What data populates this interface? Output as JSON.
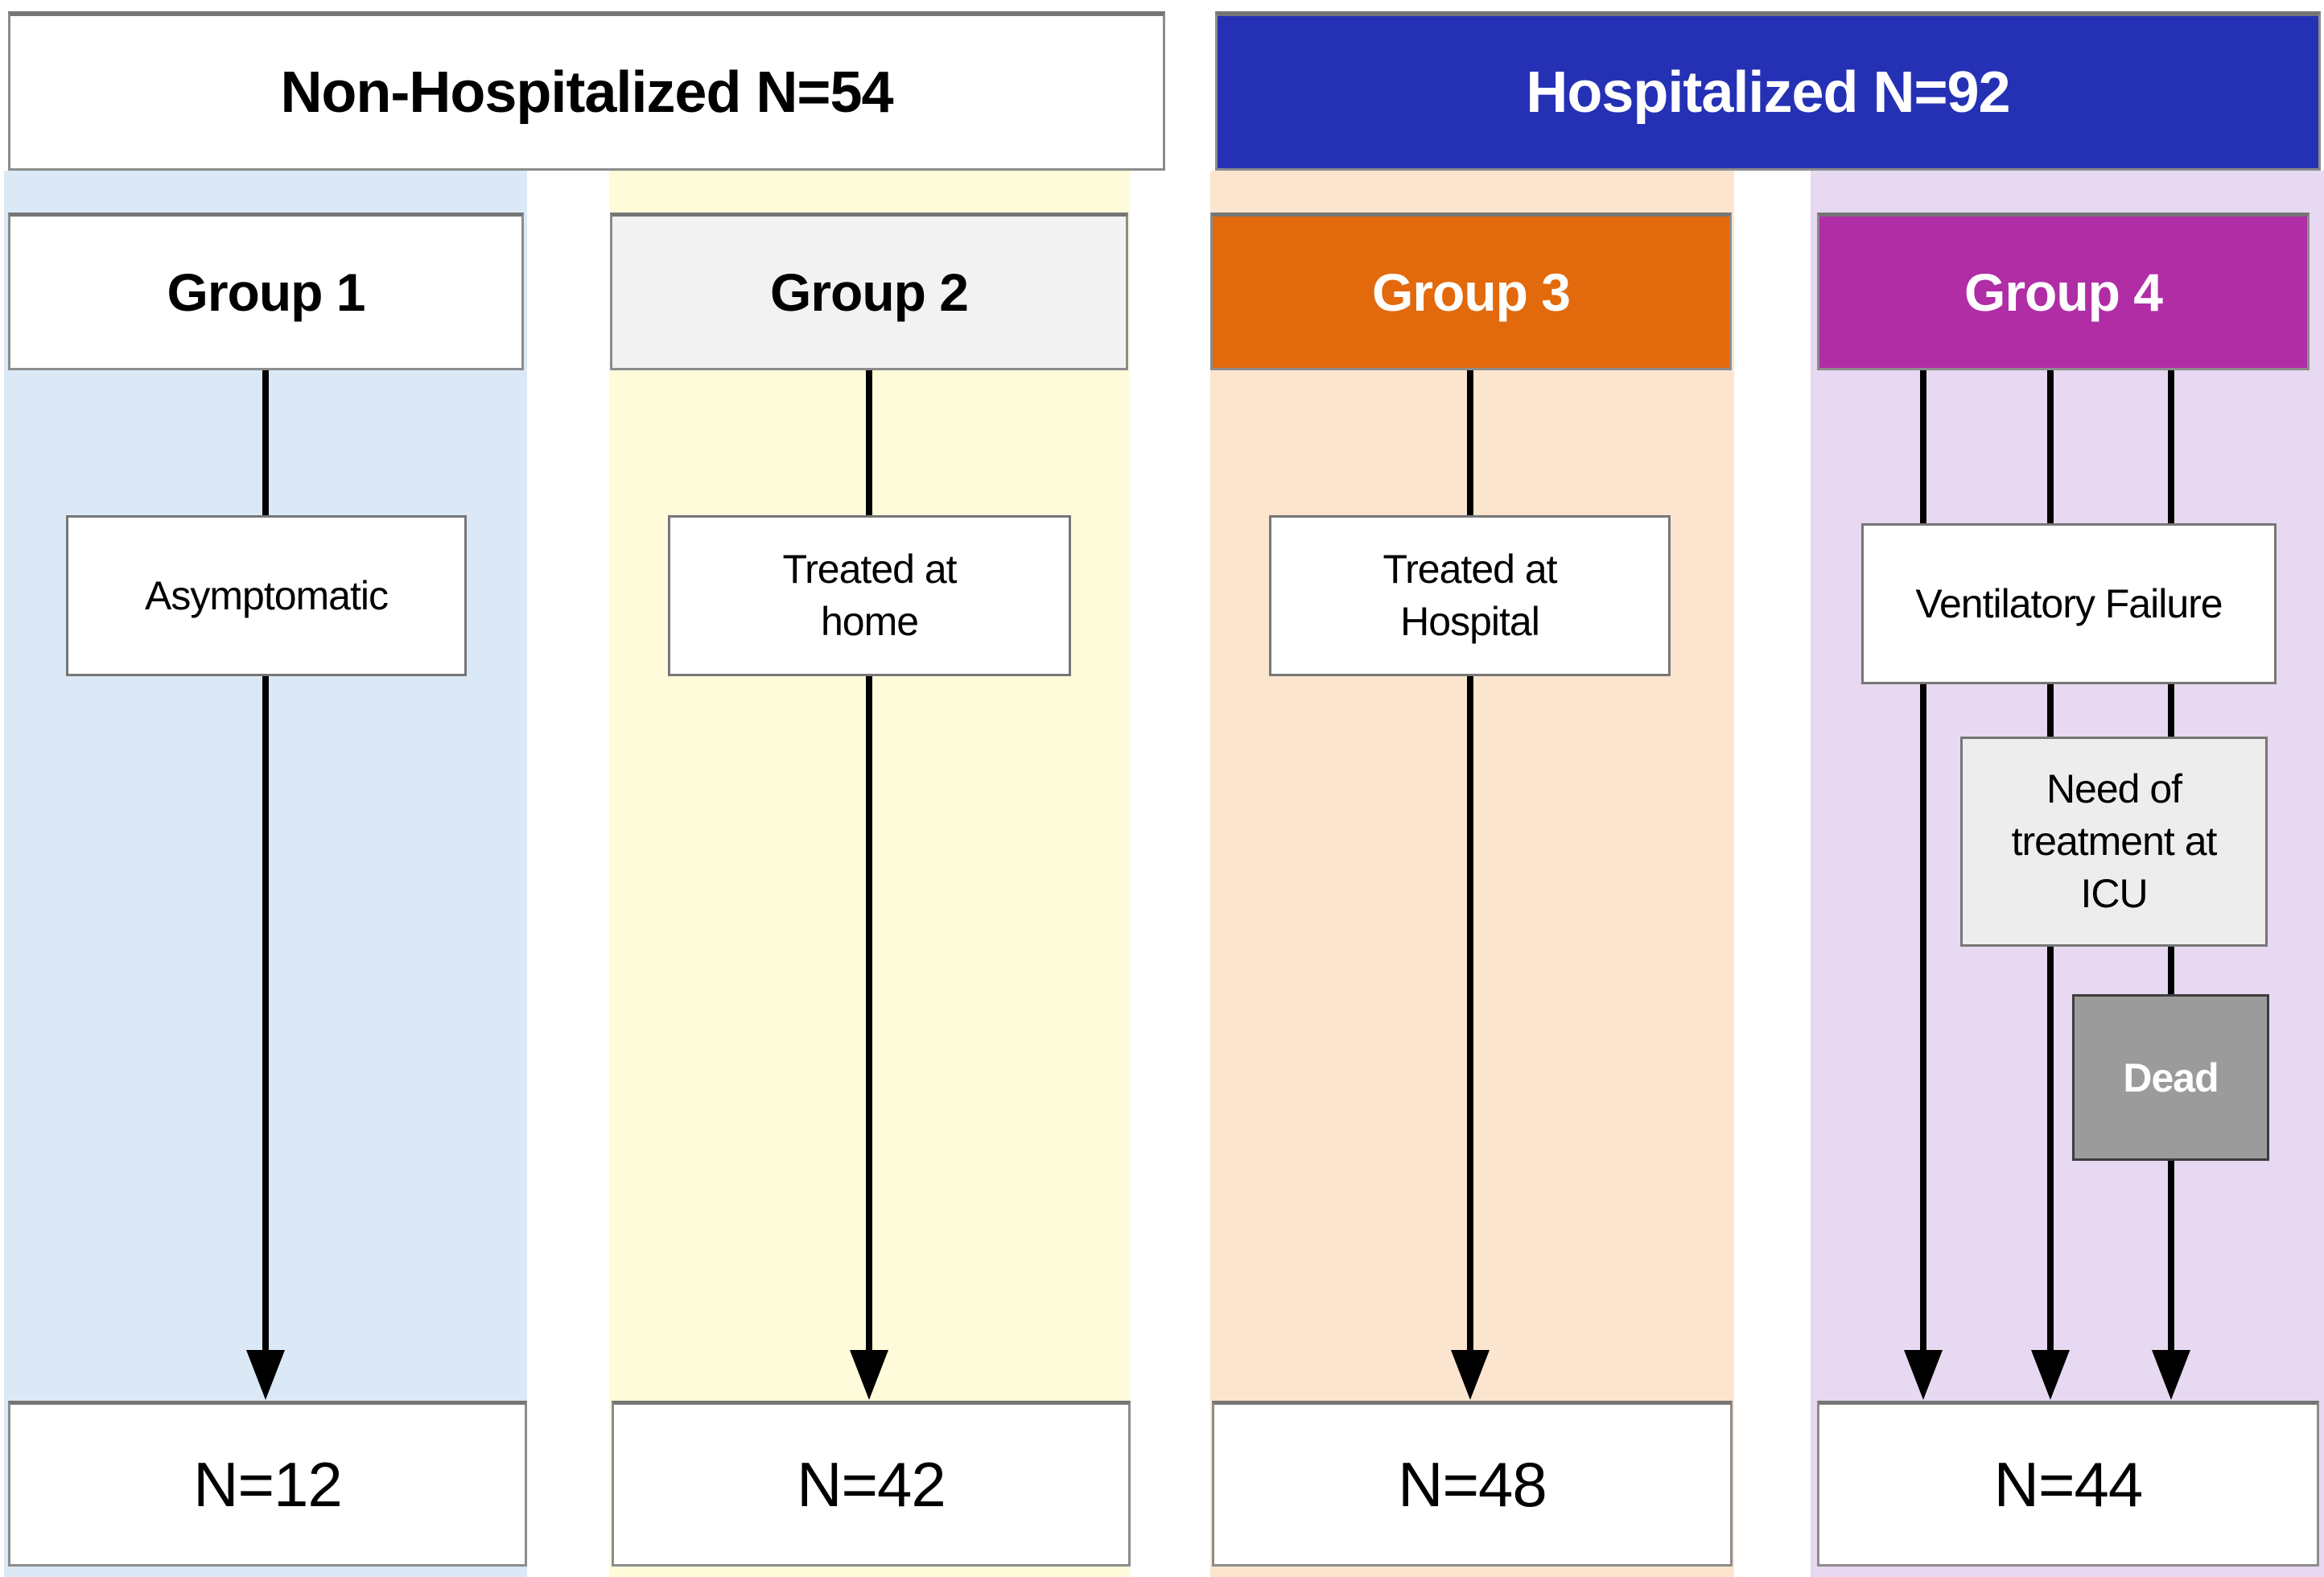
{
  "diagram": {
    "top_headers": [
      {
        "label": "Non-Hospitalized N=54"
      },
      {
        "label": "Hospitalized N=92"
      }
    ],
    "groups": [
      {
        "label": "Group 1",
        "steps": [
          "Asymptomatic"
        ],
        "outcome": "N=12"
      },
      {
        "label": "Group 2",
        "steps": [
          "Treated at home"
        ],
        "outcome": "N=42"
      },
      {
        "label": "Group 3",
        "steps": [
          "Treated at Hospital"
        ],
        "outcome": "N=48"
      },
      {
        "label": "Group 4",
        "steps": [
          "Ventilatory Failure",
          "Need of treatment at ICU",
          "Dead"
        ],
        "outcome": "N=44"
      }
    ]
  },
  "colors": {
    "hospitalized_header": "#2531b4",
    "group1_header": "#ffffff",
    "group2_header": "#f2f2f2",
    "group3_header": "#e2690c",
    "group4_header": "#b02da6",
    "column1_bg": "#dbe9f6",
    "column2_bg": "#fefbda",
    "column3_bg": "#fce5cf",
    "column4_bg": "#e7d9f1",
    "icu_box": "#ededed",
    "dead_box": "#9b9b9b",
    "flow_line": "#000000"
  }
}
